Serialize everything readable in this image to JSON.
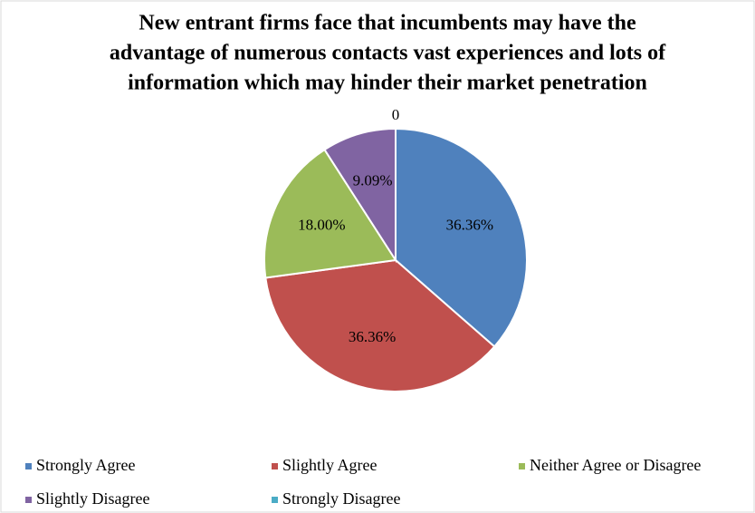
{
  "chart_data": {
    "type": "pie",
    "title": [
      "New entrant  firms  face that incumbents  may have the",
      "advantage of numerous  contacts vast experiences and lots of",
      "information  which may hinder their market penetration"
    ],
    "categories": [
      "Strongly Agree",
      "Slightly Agree",
      "Neither Agree or Disagree",
      "Slightly Disagree",
      "Strongly Disagree"
    ],
    "values": [
      36.36,
      36.36,
      18.0,
      9.09,
      0
    ],
    "value_labels": [
      "36.36%",
      "36.36%",
      "18.00%",
      "9.09%",
      "0"
    ],
    "colors": [
      "#4f81bd",
      "#c0504d",
      "#9bbb59",
      "#8064a2",
      "#4bacc6"
    ],
    "legend": "bottom"
  }
}
